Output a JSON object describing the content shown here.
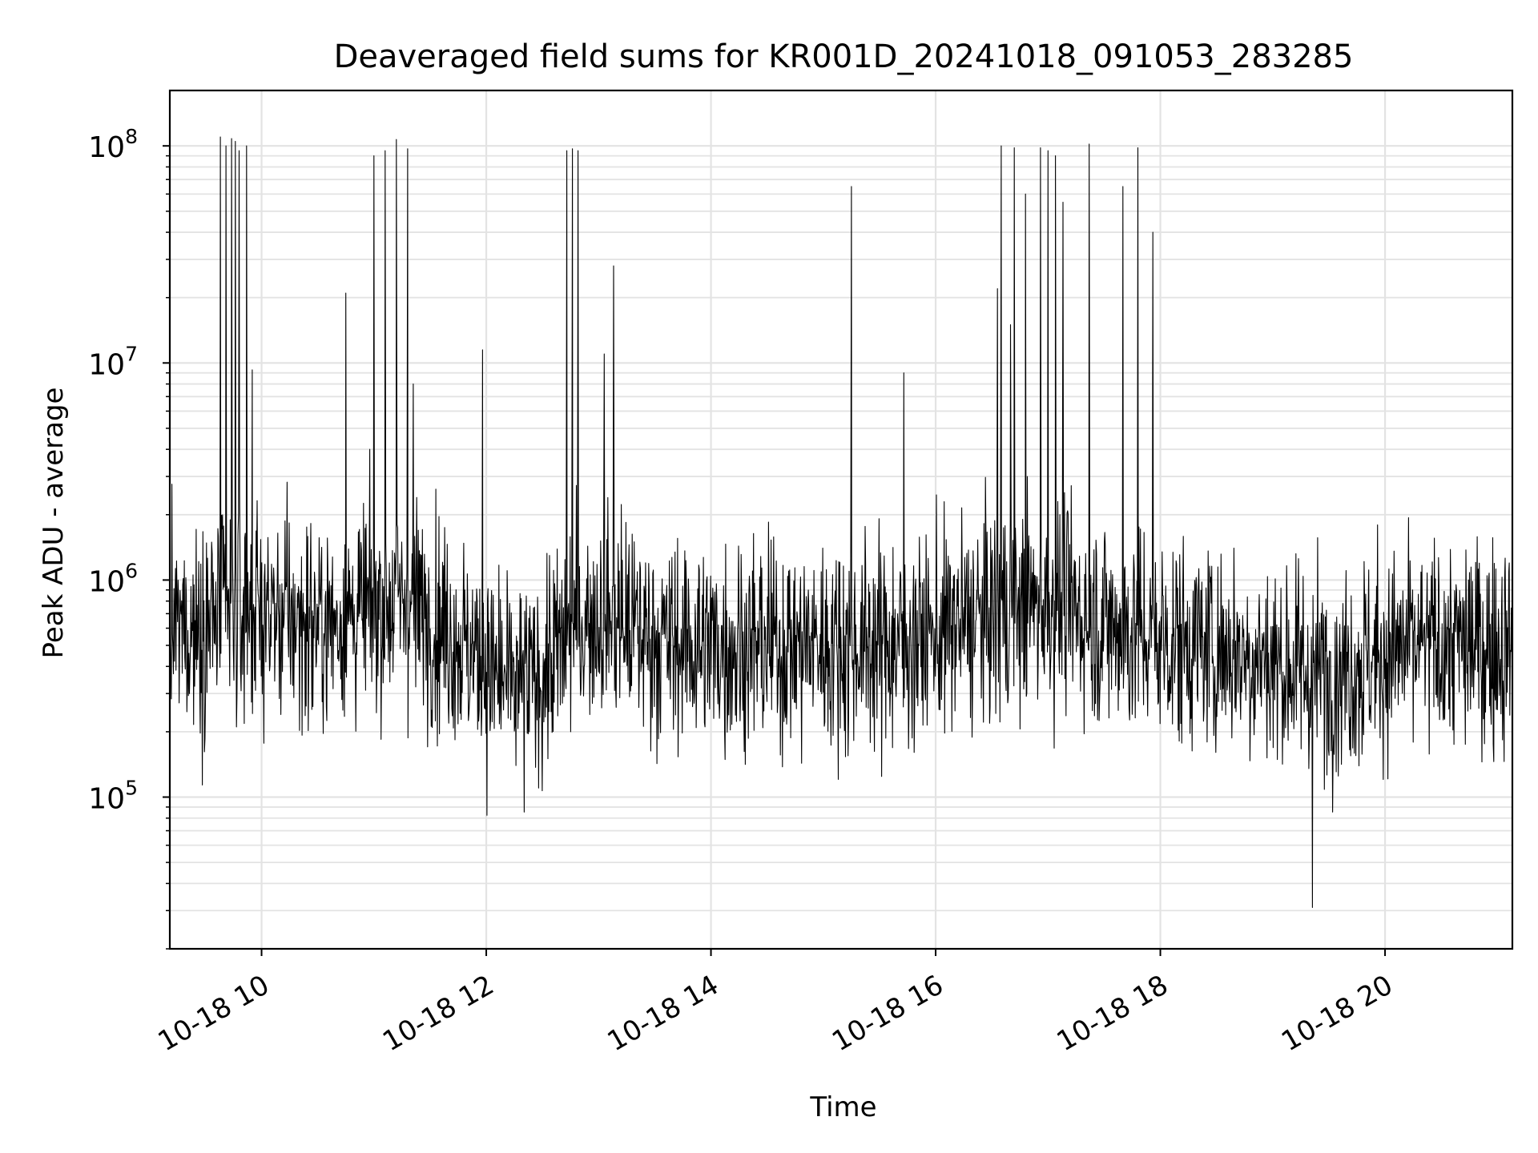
{
  "chart_data": {
    "type": "line",
    "title": "Deaveraged field sums for KR001D_20241018_091053_283285",
    "xlabel": "Time",
    "ylabel": "Peak ADU - average",
    "yscale": "log",
    "xlim": [
      "2024-10-18 09:11",
      "2024-10-18 21:08"
    ],
    "ylim": [
      20000,
      180000000
    ],
    "grid": true,
    "line_color": "#000000",
    "x_ticks": [
      {
        "t": "2024-10-18 10:00",
        "label": "10-18 10"
      },
      {
        "t": "2024-10-18 12:00",
        "label": "10-18 12"
      },
      {
        "t": "2024-10-18 14:00",
        "label": "10-18 14"
      },
      {
        "t": "2024-10-18 16:00",
        "label": "10-18 16"
      },
      {
        "t": "2024-10-18 18:00",
        "label": "10-18 18"
      },
      {
        "t": "2024-10-18 20:00",
        "label": "10-18 20"
      }
    ],
    "y_ticks": [
      {
        "value": 100000,
        "base": "10",
        "exp": "5"
      },
      {
        "value": 1000000,
        "base": "10",
        "exp": "6"
      },
      {
        "value": 10000000,
        "base": "10",
        "exp": "7"
      },
      {
        "value": 100000000,
        "base": "10",
        "exp": "8"
      }
    ],
    "series_stats": {
      "typical_value": 500000,
      "typical_range": [
        100000,
        3000000
      ],
      "min_value": 31000,
      "max_value": 110000000
    },
    "spikes": [
      {
        "t": "2024-10-18 09:38",
        "y": 110000000
      },
      {
        "t": "2024-10-18 09:41",
        "y": 100000000
      },
      {
        "t": "2024-10-18 09:44",
        "y": 108000000
      },
      {
        "t": "2024-10-18 09:46",
        "y": 105000000
      },
      {
        "t": "2024-10-18 09:48",
        "y": 95000000
      },
      {
        "t": "2024-10-18 09:52",
        "y": 100000000
      },
      {
        "t": "2024-10-18 09:55",
        "y": 9300000
      },
      {
        "t": "2024-10-18 10:45",
        "y": 21000000
      },
      {
        "t": "2024-10-18 11:00",
        "y": 90000000
      },
      {
        "t": "2024-10-18 11:06",
        "y": 95000000
      },
      {
        "t": "2024-10-18 11:12",
        "y": 107000000
      },
      {
        "t": "2024-10-18 11:18",
        "y": 97000000
      },
      {
        "t": "2024-10-18 11:21",
        "y": 8000000
      },
      {
        "t": "2024-10-18 11:58",
        "y": 11500000
      },
      {
        "t": "2024-10-18 12:43",
        "y": 95000000
      },
      {
        "t": "2024-10-18 12:46",
        "y": 97000000
      },
      {
        "t": "2024-10-18 12:49",
        "y": 95000000
      },
      {
        "t": "2024-10-18 13:03",
        "y": 11000000
      },
      {
        "t": "2024-10-18 13:08",
        "y": 28000000
      },
      {
        "t": "2024-10-18 15:15",
        "y": 65000000
      },
      {
        "t": "2024-10-18 15:43",
        "y": 9000000
      },
      {
        "t": "2024-10-18 16:33",
        "y": 27000000
      },
      {
        "t": "2024-10-18 16:33",
        "y": 22000000
      },
      {
        "t": "2024-10-18 16:35",
        "y": 100000000
      },
      {
        "t": "2024-10-18 16:40",
        "y": 15000000
      },
      {
        "t": "2024-10-18 16:42",
        "y": 98000000
      },
      {
        "t": "2024-10-18 16:48",
        "y": 60000000
      },
      {
        "t": "2024-10-18 16:56",
        "y": 98000000
      },
      {
        "t": "2024-10-18 17:00",
        "y": 95000000
      },
      {
        "t": "2024-10-18 17:04",
        "y": 90000000
      },
      {
        "t": "2024-10-18 17:08",
        "y": 55000000
      },
      {
        "t": "2024-10-18 17:22",
        "y": 102000000
      },
      {
        "t": "2024-10-18 17:40",
        "y": 65000000
      },
      {
        "t": "2024-10-18 17:48",
        "y": 98000000
      },
      {
        "t": "2024-10-18 17:56",
        "y": 40000000
      }
    ]
  }
}
